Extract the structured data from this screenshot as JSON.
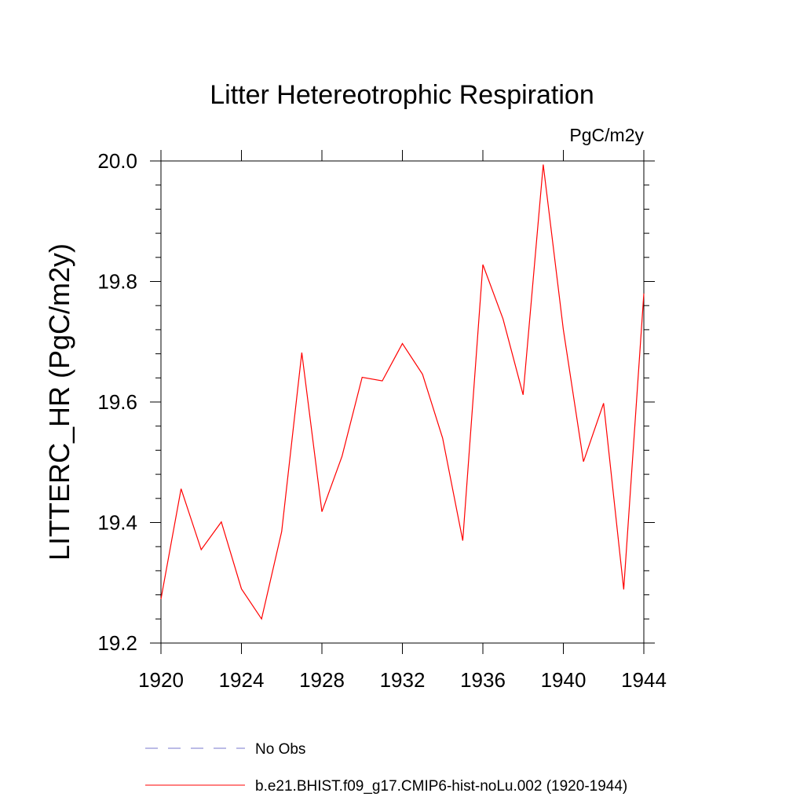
{
  "chart_data": {
    "type": "line",
    "title": "Litter Hetereotrophic Respiration",
    "units_label": "PgC/m2y",
    "ylabel": "LITTERC_HR  (PgC/m2y)",
    "xlabel": "",
    "xlim": [
      1920,
      1944
    ],
    "ylim": [
      19.2,
      20.0
    ],
    "x_ticks": [
      "1920",
      "1924",
      "1928",
      "1932",
      "1936",
      "1940",
      "1944"
    ],
    "y_ticks": [
      "19.2",
      "19.4",
      "19.6",
      "19.8",
      "20.0"
    ],
    "series": [
      {
        "name": "b.e21.BHIST.f09_g17.CMIP6-hist-noLu.002 (1920-1944)",
        "color": "#ff0000",
        "x": [
          1920,
          1921,
          1922,
          1923,
          1924,
          1925,
          1926,
          1927,
          1928,
          1929,
          1930,
          1931,
          1932,
          1933,
          1934,
          1935,
          1936,
          1937,
          1938,
          1939,
          1940,
          1941,
          1942,
          1943,
          1944
        ],
        "values": [
          19.273,
          19.456,
          19.355,
          19.401,
          19.29,
          19.24,
          19.385,
          19.682,
          19.418,
          19.51,
          19.641,
          19.635,
          19.697,
          19.646,
          19.54,
          19.37,
          19.828,
          19.738,
          19.612,
          19.994,
          19.72,
          19.501,
          19.598,
          19.289,
          19.78
        ]
      }
    ],
    "legend": {
      "placement": "bottom",
      "entries": [
        {
          "label": "No Obs",
          "color": "#7777cc",
          "style": "dashed"
        },
        {
          "label": "b.e21.BHIST.f09_g17.CMIP6-hist-noLu.002 (1920-1944)",
          "color": "#ff0000",
          "style": "solid"
        }
      ]
    },
    "grid": false
  }
}
